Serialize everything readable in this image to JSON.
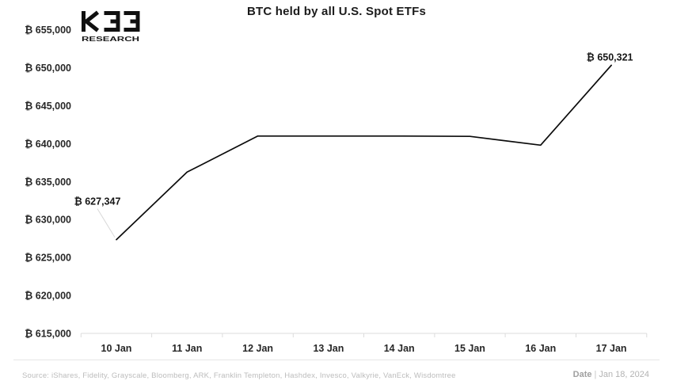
{
  "header": {
    "title": "BTC held by all U.S. Spot ETFs",
    "logo": {
      "main": "K33",
      "sub": "RESEARCH"
    }
  },
  "chart_data": {
    "type": "line",
    "title": "BTC held by all U.S. Spot ETFs",
    "x_label": "Date",
    "categories": [
      "10 Jan",
      "11 Jan",
      "12 Jan",
      "13 Jan",
      "14 Jan",
      "15 Jan",
      "16 Jan",
      "17 Jan"
    ],
    "values": [
      627347,
      636250,
      641000,
      641000,
      641000,
      640950,
      639800,
      650321
    ],
    "ylim": [
      615000,
      655000
    ],
    "y_ticks": [
      655000,
      650000,
      645000,
      640000,
      635000,
      630000,
      625000,
      620000,
      615000
    ],
    "y_tick_labels": [
      "₿ 655,000",
      "₿ 650,000",
      "₿ 645,000",
      "₿ 640,000",
      "₿ 635,000",
      "₿ 630,000",
      "₿ 625,000",
      "₿ 620,000",
      "₿ 615,000"
    ],
    "grid": false,
    "legend": "none",
    "line_color": "#0b0b0b",
    "annotations": [
      {
        "category": "10 Jan",
        "value": 627347,
        "label": "₿ 627,347"
      },
      {
        "category": "17 Jan",
        "value": 650321,
        "label": "₿ 650,321"
      }
    ]
  },
  "footer": {
    "source": "Source:  iShares, Fidelity, Grayscale, Bloomberg, ARK, Franklin Templeton, Hashdex, Invesco, Valkyrie, VanEck, Wisdomtree",
    "date_label": "Date",
    "date_separator": "|",
    "date_value": "Jan 18, 2024"
  }
}
